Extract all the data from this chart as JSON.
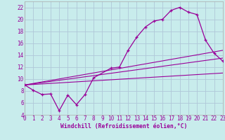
{
  "xlabel": "Windchill (Refroidissement éolien,°C)",
  "bg_color": "#c8ecec",
  "grid_color": "#b0c8d8",
  "line_color": "#990099",
  "xlim": [
    0,
    23
  ],
  "ylim": [
    4,
    23
  ],
  "xticks": [
    0,
    1,
    2,
    3,
    4,
    5,
    6,
    7,
    8,
    9,
    10,
    11,
    12,
    13,
    14,
    15,
    16,
    17,
    18,
    19,
    20,
    21,
    22,
    23
  ],
  "yticks": [
    4,
    6,
    8,
    10,
    12,
    14,
    16,
    18,
    20,
    22
  ],
  "curve1_x": [
    0,
    1,
    2,
    3,
    4,
    5,
    6,
    7,
    8,
    10,
    11,
    12,
    13,
    14,
    15,
    16,
    17,
    18,
    19,
    20,
    21,
    22,
    23
  ],
  "curve1_y": [
    9.0,
    8.1,
    7.4,
    7.5,
    4.7,
    7.3,
    5.7,
    7.4,
    10.2,
    11.8,
    12.0,
    14.8,
    17.0,
    18.7,
    19.7,
    20.0,
    21.5,
    22.0,
    21.2,
    20.8,
    16.5,
    14.3,
    13.0
  ],
  "line1_x": [
    0,
    23
  ],
  "line1_y": [
    9.0,
    11.0
  ],
  "line2_x": [
    0,
    23
  ],
  "line2_y": [
    9.0,
    13.5
  ],
  "line3_x": [
    0,
    23
  ],
  "line3_y": [
    9.0,
    14.8
  ],
  "tick_fontsize": 5.5,
  "xlabel_fontsize": 5.8
}
